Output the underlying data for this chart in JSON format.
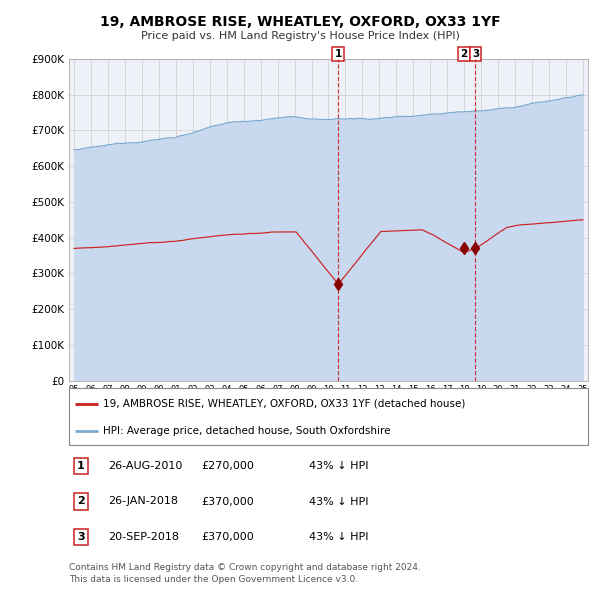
{
  "title": "19, AMBROSE RISE, WHEATLEY, OXFORD, OX33 1YF",
  "subtitle": "Price paid vs. HM Land Registry's House Price Index (HPI)",
  "legend_line1": "19, AMBROSE RISE, WHEATLEY, OXFORD, OX33 1YF (detached house)",
  "legend_line2": "HPI: Average price, detached house, South Oxfordshire",
  "footer1": "Contains HM Land Registry data © Crown copyright and database right 2024.",
  "footer2": "This data is licensed under the Open Government Licence v3.0.",
  "transactions": [
    {
      "label": "1",
      "date": "26-AUG-2010",
      "price_str": "£270,000",
      "hpi": "43% ↓ HPI",
      "year": 2010,
      "month": 8,
      "price": 270000
    },
    {
      "label": "2",
      "date": "26-JAN-2018",
      "price_str": "£370,000",
      "hpi": "43% ↓ HPI",
      "year": 2018,
      "month": 1,
      "price": 370000
    },
    {
      "label": "3",
      "date": "20-SEP-2018",
      "price_str": "£370,000",
      "hpi": "43% ↓ HPI",
      "year": 2018,
      "month": 9,
      "price": 370000
    }
  ],
  "hpi_fill_color": "#c8d8ee",
  "hpi_line_color": "#7aaad0",
  "price_color": "#cc2222",
  "dashed_color": "#cc2222",
  "marker_color": "#880000",
  "ylim": [
    0,
    900000
  ],
  "yticks": [
    0,
    100000,
    200000,
    300000,
    400000,
    500000,
    600000,
    700000,
    800000,
    900000
  ],
  "start_year": 1995,
  "end_year": 2025,
  "grid_color": "#cccccc",
  "axis_bg": "#eef2f8"
}
